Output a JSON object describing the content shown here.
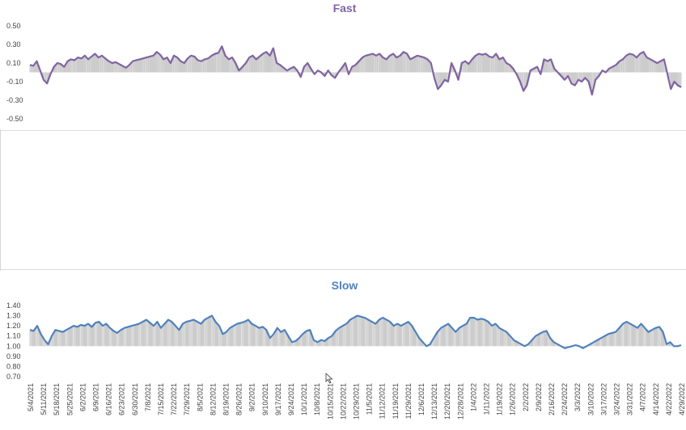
{
  "colors": {
    "fast": "#8064a2",
    "slow": "#4f81bd",
    "whisker": "#9a9a9a",
    "text": "#444444"
  },
  "chart_data": [
    {
      "type": "line",
      "title": "Fast",
      "ylim": [
        -0.5,
        0.5
      ],
      "yticks": [
        "0.50",
        "0.30",
        "0.10",
        "-0.10",
        "-0.30",
        "-0.50"
      ],
      "ytick_values": [
        0.5,
        0.3,
        0.1,
        -0.1,
        -0.3,
        -0.5
      ],
      "baseline": 0.0,
      "series": [
        {
          "values": [
            0.08,
            0.07,
            0.12,
            0.02,
            -0.08,
            -0.12,
            -0.02,
            0.06,
            0.1,
            0.09,
            0.06,
            0.12,
            0.14,
            0.13,
            0.16,
            0.15,
            0.18,
            0.14,
            0.17,
            0.2,
            0.16,
            0.18,
            0.15,
            0.12,
            0.1,
            0.11,
            0.09,
            0.07,
            0.05,
            0.08,
            0.12,
            0.13,
            0.14,
            0.15,
            0.16,
            0.17,
            0.18,
            0.22,
            0.19,
            0.14,
            0.16,
            0.1,
            0.18,
            0.16,
            0.12,
            0.1,
            0.15,
            0.18,
            0.17,
            0.13,
            0.12,
            0.14,
            0.15,
            0.18,
            0.2,
            0.21,
            0.28,
            0.18,
            0.14,
            0.16,
            0.1,
            0.02,
            0.06,
            0.1,
            0.16,
            0.18,
            0.14,
            0.17,
            0.2,
            0.22,
            0.18,
            0.26,
            0.1,
            0.08,
            0.05,
            0.02,
            0.04,
            0.06,
            0.02,
            -0.05,
            0.06,
            0.1,
            0.04,
            -0.02,
            0.02,
            0.0,
            -0.04,
            0.02,
            -0.03,
            -0.06,
            0.0,
            0.05,
            0.1,
            -0.02,
            0.06,
            0.08,
            0.12,
            0.16,
            0.18,
            0.19,
            0.2,
            0.18,
            0.2,
            0.16,
            0.14,
            0.18,
            0.2,
            0.16,
            0.18,
            0.22,
            0.2,
            0.14,
            0.16,
            0.18,
            0.17,
            0.16,
            0.14,
            0.1,
            -0.06,
            -0.18,
            -0.14,
            -0.08,
            -0.1,
            0.1,
            0.02,
            -0.08,
            0.1,
            0.12,
            0.09,
            0.14,
            0.18,
            0.2,
            0.19,
            0.2,
            0.17,
            0.16,
            0.2,
            0.14,
            0.16,
            0.1,
            0.08,
            0.04,
            -0.02,
            -0.1,
            -0.2,
            -0.14,
            0.02,
            0.04,
            0.06,
            -0.02,
            0.14,
            0.12,
            0.14,
            0.04,
            0.0,
            -0.04,
            -0.08,
            -0.04,
            -0.12,
            -0.14,
            -0.08,
            -0.1,
            -0.06,
            -0.1,
            -0.24,
            -0.08,
            -0.04,
            0.02,
            0.0,
            0.04,
            0.06,
            0.08,
            0.12,
            0.14,
            0.18,
            0.2,
            0.19,
            0.16,
            0.2,
            0.22,
            0.16,
            0.14,
            0.12,
            0.1,
            0.12,
            0.14,
            -0.02,
            -0.18,
            -0.1,
            -0.14,
            -0.16
          ]
        }
      ]
    },
    {
      "type": "line",
      "title": "Slow",
      "ylim": [
        0.7,
        1.4
      ],
      "yticks": [
        "1.40",
        "1.30",
        "1.20",
        "1.10",
        "1.00",
        "0.90",
        "0.80",
        "0.70"
      ],
      "ytick_values": [
        1.4,
        1.3,
        1.2,
        1.1,
        1.0,
        0.9,
        0.8,
        0.7
      ],
      "baseline": 1.0,
      "series": [
        {
          "values": [
            1.16,
            1.15,
            1.2,
            1.12,
            1.06,
            1.02,
            1.1,
            1.16,
            1.15,
            1.14,
            1.16,
            1.18,
            1.2,
            1.19,
            1.21,
            1.2,
            1.22,
            1.19,
            1.23,
            1.24,
            1.2,
            1.22,
            1.18,
            1.15,
            1.13,
            1.16,
            1.18,
            1.19,
            1.2,
            1.21,
            1.22,
            1.24,
            1.26,
            1.23,
            1.2,
            1.24,
            1.18,
            1.22,
            1.26,
            1.24,
            1.2,
            1.16,
            1.22,
            1.24,
            1.25,
            1.26,
            1.24,
            1.22,
            1.26,
            1.28,
            1.3,
            1.24,
            1.2,
            1.12,
            1.14,
            1.18,
            1.2,
            1.22,
            1.23,
            1.24,
            1.26,
            1.22,
            1.2,
            1.18,
            1.19,
            1.16,
            1.08,
            1.12,
            1.18,
            1.14,
            1.16,
            1.1,
            1.04,
            1.05,
            1.08,
            1.12,
            1.15,
            1.16,
            1.06,
            1.04,
            1.06,
            1.05,
            1.08,
            1.1,
            1.15,
            1.18,
            1.2,
            1.22,
            1.26,
            1.28,
            1.3,
            1.29,
            1.28,
            1.26,
            1.24,
            1.22,
            1.26,
            1.28,
            1.26,
            1.24,
            1.2,
            1.22,
            1.2,
            1.22,
            1.24,
            1.2,
            1.14,
            1.08,
            1.04,
            1.0,
            1.02,
            1.08,
            1.14,
            1.18,
            1.2,
            1.22,
            1.18,
            1.14,
            1.18,
            1.2,
            1.22,
            1.28,
            1.28,
            1.26,
            1.27,
            1.26,
            1.24,
            1.2,
            1.22,
            1.18,
            1.16,
            1.14,
            1.1,
            1.06,
            1.04,
            1.02,
            1.0,
            1.02,
            1.06,
            1.1,
            1.12,
            1.14,
            1.15,
            1.08,
            1.04,
            1.02,
            1.0,
            0.98,
            0.99,
            1.0,
            1.01,
            1.0,
            0.98,
            1.0,
            1.02,
            1.04,
            1.06,
            1.08,
            1.1,
            1.12,
            1.13,
            1.14,
            1.18,
            1.22,
            1.24,
            1.22,
            1.2,
            1.18,
            1.22,
            1.18,
            1.14,
            1.16,
            1.18,
            1.19,
            1.14,
            1.02,
            1.04,
            1.0,
            1.0,
            1.01
          ]
        }
      ],
      "x_tick_labels": [
        "5/4/2021",
        "5/11/2021",
        "5/18/2021",
        "5/25/2021",
        "6/2/2021",
        "6/9/2021",
        "6/16/2021",
        "6/23/2021",
        "6/30/2021",
        "7/8/2021",
        "7/15/2021",
        "7/22/2021",
        "7/29/2021",
        "8/5/2021",
        "8/12/2021",
        "8/19/2021",
        "8/26/2021",
        "9/2/2021",
        "9/10/2021",
        "9/17/2021",
        "9/24/2021",
        "10/1/2021",
        "10/8/2021",
        "10/15/2021",
        "10/22/2021",
        "10/29/2021",
        "11/5/2021",
        "11/12/2021",
        "11/19/2021",
        "11/29/2021",
        "12/6/2021",
        "12/13/2021",
        "12/20/2021",
        "12/28/2021",
        "1/4/2022",
        "1/11/2022",
        "1/19/2022",
        "1/26/2022",
        "2/2/2022",
        "2/9/2022",
        "2/16/2022",
        "2/24/2022",
        "3/3/2022",
        "3/10/2022",
        "3/17/2022",
        "3/24/2022",
        "3/31/2022",
        "4/7/2022",
        "4/14/2022",
        "4/22/2022",
        "4/29/2022"
      ]
    }
  ]
}
